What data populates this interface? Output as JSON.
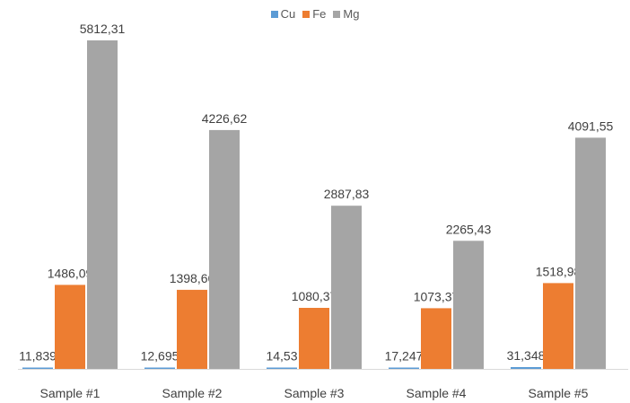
{
  "chart_data": {
    "type": "bar",
    "categories": [
      "Sample #1",
      "Sample #2",
      "Sample #3",
      "Sample #4",
      "Sample #5"
    ],
    "series": [
      {
        "name": "Cu",
        "color": "#5B9BD5",
        "values": [
          11.839,
          12.695,
          14.53,
          17.247,
          31.348
        ],
        "labels": [
          "11,839",
          "12,695",
          "14,53",
          "17,247",
          "31,348"
        ]
      },
      {
        "name": "Fe",
        "color": "#ED7D31",
        "values": [
          1486.09,
          1398.66,
          1080.37,
          1073.37,
          1518.98
        ],
        "labels": [
          "1486,09",
          "1398,66",
          "1080,37",
          "1073,37",
          "1518,98"
        ]
      },
      {
        "name": "Mg",
        "color": "#A5A5A5",
        "values": [
          5812.31,
          4226.62,
          2887.83,
          2265.43,
          4091.55
        ],
        "labels": [
          "5812,31",
          "4226,62",
          "2887,83",
          "2265,43",
          "4091,55"
        ]
      }
    ],
    "title": "",
    "xlabel": "",
    "ylabel": "",
    "legend": "top-center",
    "grid": false
  }
}
